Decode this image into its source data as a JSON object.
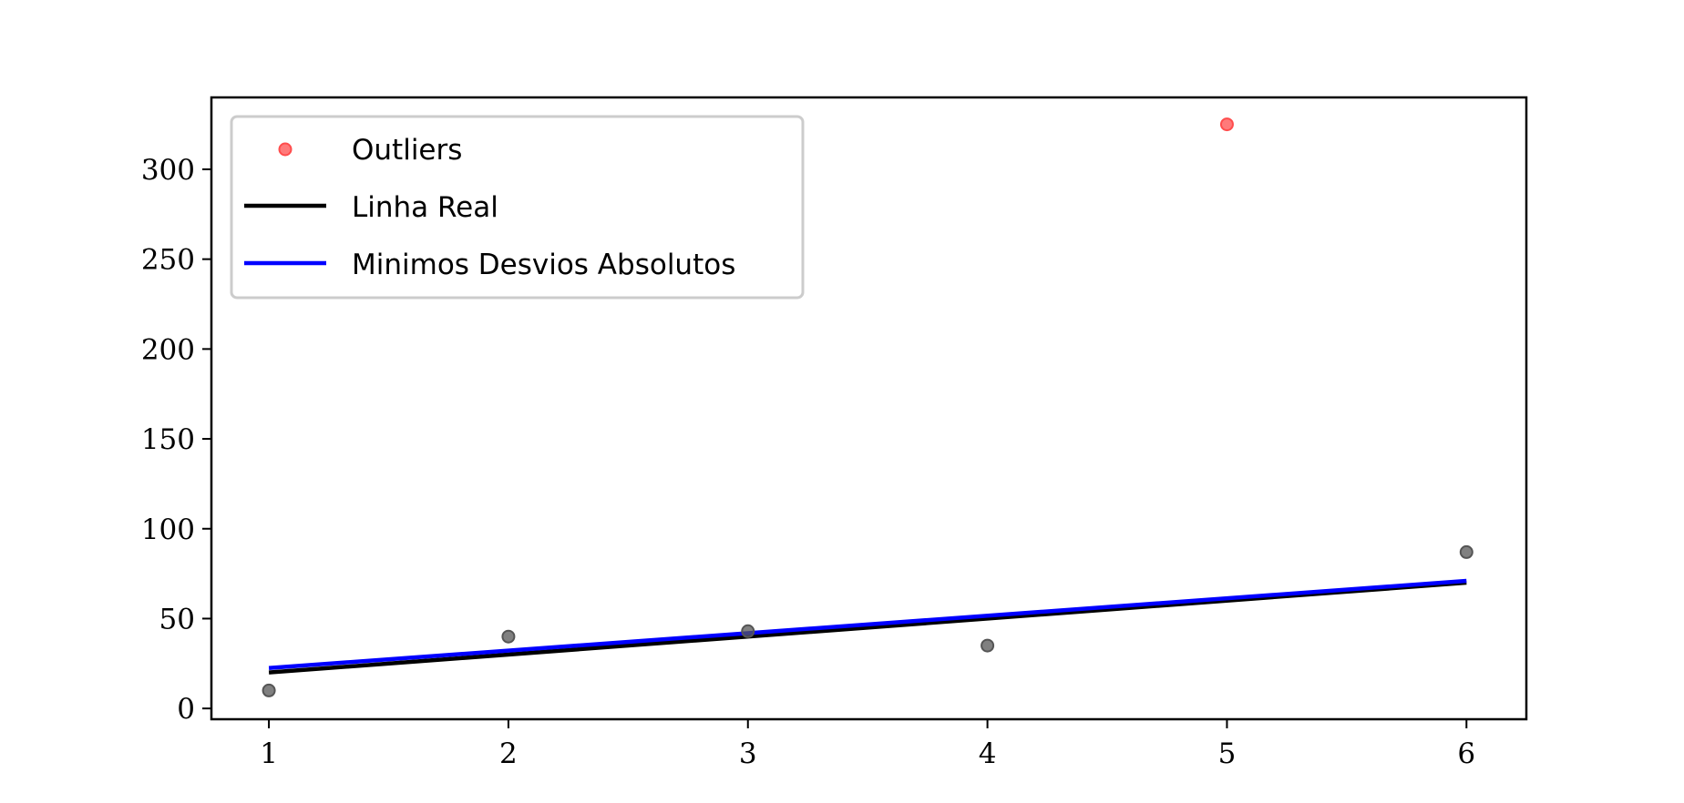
{
  "chart_data": {
    "type": "scatter",
    "xlim": [
      0.76,
      6.25
    ],
    "ylim": [
      -6,
      340
    ],
    "xticks": [
      1,
      2,
      3,
      4,
      5,
      6
    ],
    "yticks": [
      0,
      50,
      100,
      150,
      200,
      250,
      300
    ],
    "grid": false,
    "legend_position": "upper-left",
    "series": [
      {
        "kind": "points",
        "color": "#555555",
        "x": [
          1,
          2,
          3,
          4,
          6
        ],
        "y": [
          10,
          40,
          43,
          35,
          87
        ]
      },
      {
        "name": "Outliers",
        "kind": "points",
        "color": "#ff4d4d",
        "x": [
          5
        ],
        "y": [
          325
        ]
      },
      {
        "name": "Linha Real",
        "kind": "line",
        "color": "#000000",
        "x": [
          1,
          6
        ],
        "y": [
          20,
          70
        ]
      },
      {
        "name": "Minimos Desvios Absolutos",
        "kind": "line",
        "color": "#0000ff",
        "x": [
          1,
          6
        ],
        "y": [
          22.5,
          71
        ]
      }
    ]
  }
}
